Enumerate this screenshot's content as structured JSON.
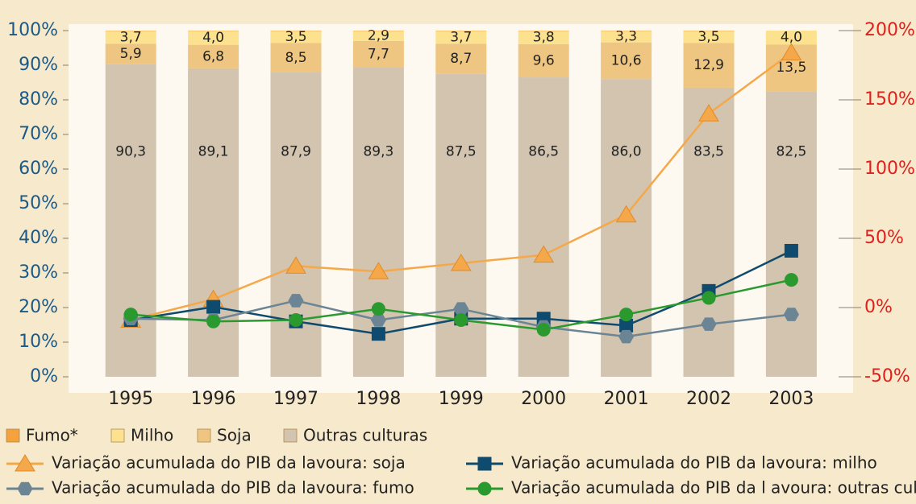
{
  "chart_data": {
    "type": "bar",
    "stacked": true,
    "categories": [
      "1995",
      "1996",
      "1997",
      "1998",
      "1999",
      "2000",
      "2001",
      "2002",
      "2003"
    ],
    "ylim": [
      0,
      100
    ],
    "yticks": [
      {
        "value": 0,
        "label": "0%"
      },
      {
        "value": 10,
        "label": "10%"
      },
      {
        "value": 20,
        "label": "20%"
      },
      {
        "value": 30,
        "label": "30%"
      },
      {
        "value": 40,
        "label": "40%"
      },
      {
        "value": 50,
        "label": "50%"
      },
      {
        "value": 60,
        "label": "60%"
      },
      {
        "value": 70,
        "label": "70%"
      },
      {
        "value": 80,
        "label": "80%"
      },
      {
        "value": 90,
        "label": "90%"
      },
      {
        "value": 100,
        "label": "100%"
      }
    ],
    "y2lim": [
      -50,
      200
    ],
    "y2ticks": [
      {
        "value": -50,
        "label": "-50%"
      },
      {
        "value": 0,
        "label": "0%"
      },
      {
        "value": 50,
        "label": "50%"
      },
      {
        "value": 100,
        "label": "100%"
      },
      {
        "value": 150,
        "label": "150%"
      },
      {
        "value": 200,
        "label": "200%"
      }
    ],
    "series": [
      {
        "name": "Outras culturas",
        "type": "bar",
        "color": "#d2c4af",
        "values": [
          90.3,
          89.1,
          87.9,
          89.3,
          87.5,
          86.5,
          86.0,
          83.5,
          82.5
        ],
        "value_labels": [
          "90,3",
          "89,1",
          "87,9",
          "89,3",
          "87,5",
          "86,5",
          "86,0",
          "83,5",
          "82,5"
        ]
      },
      {
        "name": "Soja",
        "type": "bar",
        "color": "#eec681",
        "values": [
          5.9,
          6.8,
          8.5,
          7.7,
          8.7,
          9.6,
          10.6,
          12.9,
          13.5
        ],
        "value_labels": [
          "5,9",
          "6,8",
          "8,5",
          "7,7",
          "8,7",
          "9,6",
          "10,6",
          "12,9",
          "13,5"
        ]
      },
      {
        "name": "Milho",
        "type": "bar",
        "color": "#fce18f",
        "values": [
          3.7,
          4.0,
          3.5,
          2.9,
          3.7,
          3.8,
          3.3,
          3.5,
          4.0
        ],
        "value_labels": [
          "3,7",
          "4,0",
          "3,5",
          "2,9",
          "3,7",
          "3,8",
          "3,3",
          "3,5",
          "4,0"
        ]
      },
      {
        "name": "Fumo*",
        "type": "bar",
        "color": "#f5a23c",
        "values": [
          0.1,
          0.1,
          0.1,
          0.1,
          0.1,
          0.1,
          0.1,
          0.1,
          0.0
        ]
      },
      {
        "name": "Variação acumulada do PIB da lavoura: soja",
        "type": "line",
        "axis": "y2",
        "marker": "triangle",
        "color": "#f5a84a",
        "values": [
          -9,
          6,
          30,
          26,
          32,
          38,
          67,
          140,
          184
        ]
      },
      {
        "name": "Variação acumulada do PIB da lavoura: milho",
        "type": "line",
        "axis": "y2",
        "marker": "square",
        "color": "#0f4b6e",
        "values": [
          -9,
          0.5,
          -10,
          -19,
          -8,
          -8,
          -13,
          12,
          41
        ]
      },
      {
        "name": "Variação acumulada do PIB da lavoura: fumo",
        "type": "line",
        "axis": "y2",
        "marker": "hexagon",
        "color": "#6b8594",
        "values": [
          -8,
          -9,
          5,
          -9,
          -1,
          -14,
          -21,
          -12,
          -5
        ]
      },
      {
        "name": "Variação acumulada do PIB da l avoura: outras culturas",
        "type": "line",
        "axis": "y2",
        "marker": "circle",
        "color": "#2a9a2f",
        "values": [
          -5,
          -10,
          -9,
          -1,
          -9,
          -16,
          -5,
          7,
          20
        ]
      }
    ],
    "ycolor": "#1b5a88",
    "y2color": "#e0201c"
  }
}
